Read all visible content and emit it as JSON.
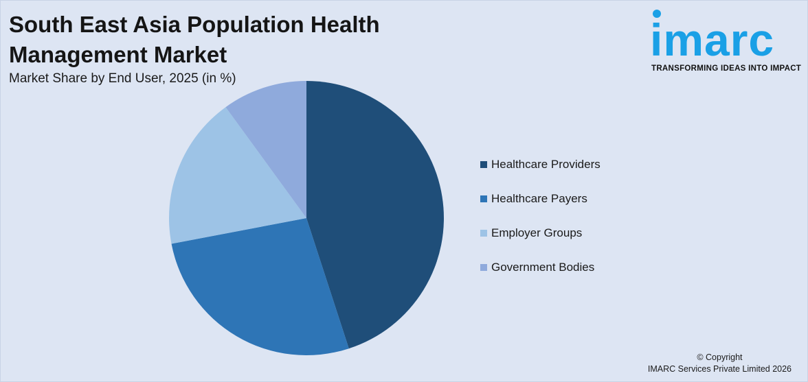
{
  "header": {
    "title": "South East Asia Population Health Management Market",
    "subtitle": "Market Share by End User, 2025 (in %)"
  },
  "logo": {
    "word": "imarc",
    "tagline": "TRANSFORMING IDEAS INTO IMPACT",
    "color": "#1aa0e6"
  },
  "footer": {
    "copyright": "© Copyright",
    "company": "IMARC Services Private Limited 2026"
  },
  "chart_data": {
    "type": "pie",
    "title": "South East Asia Population Health Management Market",
    "subtitle": "Market Share by End User, 2025 (in %)",
    "legend_position": "right",
    "slices": [
      {
        "name": "Healthcare Providers",
        "value": 45,
        "color": "#1f4e79"
      },
      {
        "name": "Healthcare Payers",
        "value": 27,
        "color": "#2e75b6"
      },
      {
        "name": "Employer Groups",
        "value": 18,
        "color": "#9dc3e6"
      },
      {
        "name": "Government Bodies",
        "value": 10,
        "color": "#8faadc"
      }
    ]
  }
}
